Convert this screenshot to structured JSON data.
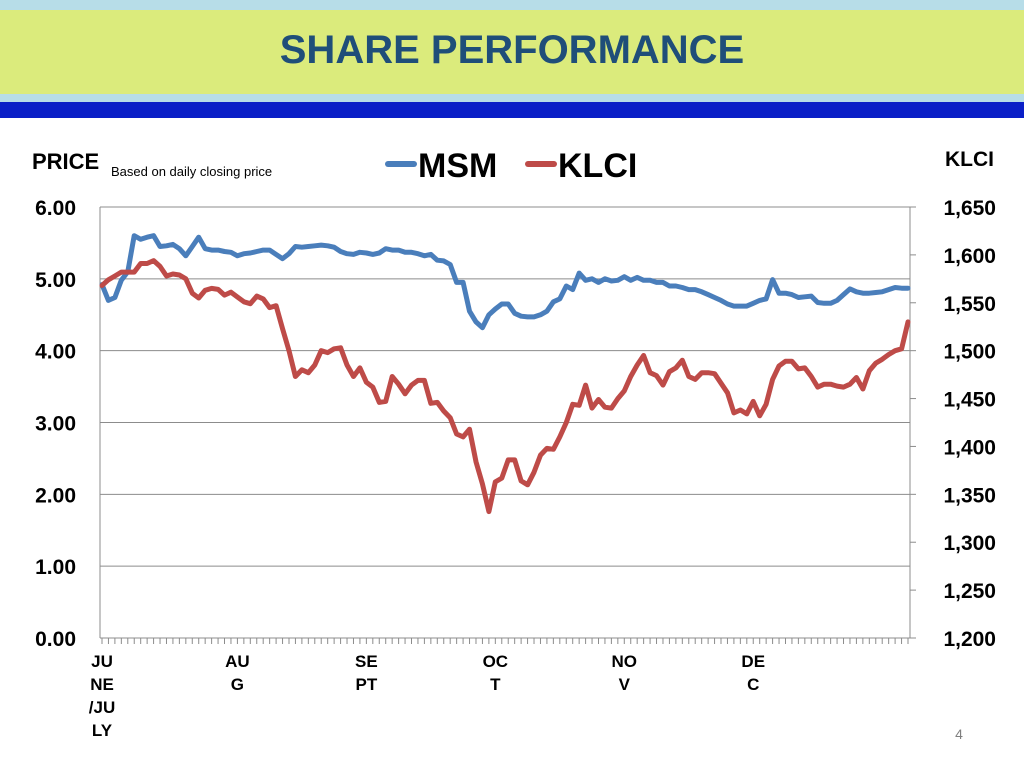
{
  "slide": {
    "title": "SHARE PERFORMANCE",
    "page_number": "4"
  },
  "colors": {
    "title_band": "#dbeb7c",
    "title_text": "#1f4e79",
    "accent_blue": "#0a1fc7",
    "msm": "#4a7ebb",
    "klci": "#be4b48"
  },
  "chart_data": {
    "type": "line",
    "title": "",
    "left_axis_label": "PRICE",
    "note": "Based on daily closing price",
    "right_axis_label": "KLCI",
    "left_ylim": [
      0,
      6
    ],
    "right_ylim": [
      1200,
      1650
    ],
    "left_ticks": [
      "0.00",
      "1.00",
      "2.00",
      "3.00",
      "4.00",
      "5.00",
      "6.00"
    ],
    "right_ticks": [
      "1,200",
      "1,250",
      "1,300",
      "1,350",
      "1,400",
      "1,450",
      "1,500",
      "1,550",
      "1,600",
      "1,650"
    ],
    "months": [
      {
        "label": [
          "JU",
          "NE",
          "/JU",
          "LY"
        ],
        "index": 0
      },
      {
        "label": [
          "AU",
          "G"
        ],
        "index": 21
      },
      {
        "label": [
          "SE",
          "PT"
        ],
        "index": 41
      },
      {
        "label": [
          "OC",
          "T"
        ],
        "index": 61
      },
      {
        "label": [
          "NO",
          "V"
        ],
        "index": 81
      },
      {
        "label": [
          "DE",
          "C"
        ],
        "index": 101
      }
    ],
    "point_count": 126,
    "legend_position": "top-center",
    "grid": true,
    "series": [
      {
        "name": "MSM",
        "axis": "left",
        "color": "#4a7ebb",
        "values": [
          4.92,
          4.7,
          4.74,
          4.98,
          5.1,
          5.6,
          5.55,
          5.58,
          5.6,
          5.45,
          5.46,
          5.48,
          5.42,
          5.32,
          5.45,
          5.58,
          5.42,
          5.4,
          5.4,
          5.38,
          5.37,
          5.32,
          5.35,
          5.36,
          5.38,
          5.4,
          5.4,
          5.34,
          5.28,
          5.35,
          5.45,
          5.44,
          5.45,
          5.46,
          5.47,
          5.46,
          5.44,
          5.38,
          5.35,
          5.34,
          5.37,
          5.36,
          5.34,
          5.36,
          5.42,
          5.4,
          5.4,
          5.37,
          5.37,
          5.35,
          5.32,
          5.34,
          5.26,
          5.25,
          5.2,
          4.95,
          4.95,
          4.55,
          4.4,
          4.32,
          4.5,
          4.58,
          4.65,
          4.65,
          4.52,
          4.48,
          4.47,
          4.47,
          4.5,
          4.55,
          4.68,
          4.72,
          4.9,
          4.85,
          5.08,
          4.98,
          5.0,
          4.95,
          5.0,
          4.97,
          4.98,
          5.03,
          4.98,
          5.02,
          4.98,
          4.98,
          4.95,
          4.95,
          4.9,
          4.9,
          4.88,
          4.85,
          4.85,
          4.82,
          4.78,
          4.74,
          4.7,
          4.65,
          4.62,
          4.62,
          4.62,
          4.66,
          4.7,
          4.72,
          4.99,
          4.8,
          4.8,
          4.78,
          4.74,
          4.75,
          4.76,
          4.67,
          4.66,
          4.66,
          4.7,
          4.78,
          4.86,
          4.82,
          4.8,
          4.8,
          4.81,
          4.82,
          4.85,
          4.88,
          4.87,
          4.87
        ]
      },
      {
        "name": "KLCI",
        "axis": "right",
        "color": "#be4b48",
        "values": [
          1568,
          1574,
          1578,
          1582,
          1582,
          1582,
          1591,
          1591,
          1594,
          1588,
          1578,
          1580,
          1579,
          1575,
          1560,
          1555,
          1563,
          1565,
          1564,
          1558,
          1561,
          1556,
          1551,
          1549,
          1557,
          1554,
          1545,
          1547,
          1523,
          1500,
          1473,
          1480,
          1477,
          1485,
          1500,
          1498,
          1502,
          1503,
          1485,
          1473,
          1482,
          1467,
          1462,
          1446,
          1447,
          1473,
          1465,
          1455,
          1464,
          1469,
          1469,
          1445,
          1446,
          1437,
          1430,
          1413,
          1410,
          1418,
          1384,
          1361,
          1332,
          1363,
          1367,
          1386,
          1386,
          1364,
          1360,
          1373,
          1391,
          1398,
          1397,
          1410,
          1425,
          1444,
          1443,
          1464,
          1440,
          1449,
          1441,
          1440,
          1450,
          1458,
          1473,
          1485,
          1495,
          1477,
          1474,
          1464,
          1478,
          1482,
          1490,
          1473,
          1470,
          1477,
          1477,
          1476,
          1466,
          1456,
          1435,
          1438,
          1434,
          1447,
          1432,
          1444,
          1470,
          1484,
          1489,
          1489,
          1481,
          1482,
          1473,
          1462,
          1465,
          1465,
          1463,
          1462,
          1465,
          1472,
          1460,
          1479,
          1487,
          1491,
          1496,
          1500,
          1502,
          1530
        ]
      }
    ]
  }
}
